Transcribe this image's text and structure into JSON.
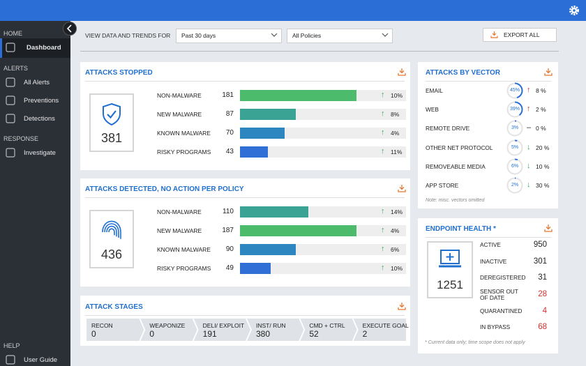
{
  "sidebar": {
    "sections": [
      {
        "title": "HOME",
        "items": [
          "Dashboard"
        ]
      },
      {
        "title": "ALERTS",
        "items": [
          "All Alerts",
          "Preventions",
          "Detections"
        ]
      },
      {
        "title": "RESPONSE",
        "items": [
          "Investigate"
        ]
      },
      {
        "title": "HELP",
        "items": [
          "User Guide"
        ]
      }
    ]
  },
  "filters": {
    "label": "VIEW DATA AND TRENDS FOR",
    "period": "Past 30 days",
    "policy": "All Policies",
    "export": "EXPORT ALL"
  },
  "attacks_stopped": {
    "title": "ATTACKS STOPPED",
    "total": 381,
    "rows": [
      {
        "label": "NON-MALWARE",
        "value": 181,
        "color": "#4cbb6c",
        "arrow": "↑",
        "arrow_color": "#3aa55a",
        "change": "10%"
      },
      {
        "label": "NEW MALWARE",
        "value": 87,
        "color": "#3aa394",
        "arrow": "↑",
        "arrow_color": "#3aa55a",
        "change": "8%"
      },
      {
        "label": "KNOWN MALWARE",
        "value": 70,
        "color": "#2e86c1",
        "arrow": "↑",
        "arrow_color": "#3aa55a",
        "change": "4%"
      },
      {
        "label": "RISKY PROGRAMS",
        "value": 43,
        "color": "#2f6fd6",
        "arrow": "↑",
        "arrow_color": "#3aa55a",
        "change": "11%"
      }
    ]
  },
  "attacks_detected": {
    "title": "ATTACKS DETECTED, NO ACTION PER POLICY",
    "total": 436,
    "rows": [
      {
        "label": "NON-MALWARE",
        "value": 110,
        "color": "#3aa394",
        "arrow": "↑",
        "arrow_color": "#3aa55a",
        "change": "14%"
      },
      {
        "label": "NEW MALWARE",
        "value": 187,
        "color": "#4cbb6c",
        "arrow": "↑",
        "arrow_color": "#3aa55a",
        "change": "4%"
      },
      {
        "label": "KNOWN MALWARE",
        "value": 90,
        "color": "#2e86c1",
        "arrow": "↑",
        "arrow_color": "#3aa55a",
        "change": "6%"
      },
      {
        "label": "RISKY PROGRAMS",
        "value": 49,
        "color": "#2f6fd6",
        "arrow": "↑",
        "arrow_color": "#3aa55a",
        "change": "10%"
      }
    ]
  },
  "attack_stages": {
    "title": "ATTACK STAGES",
    "stages": [
      {
        "label": "RECON",
        "value": 0
      },
      {
        "label": "WEAPONIZE",
        "value": 0
      },
      {
        "label": "DELI/ EXPLOIT",
        "value": 191
      },
      {
        "label": "INST/ RUN",
        "value": 380
      },
      {
        "label": "CMD + CTRL",
        "value": 52
      },
      {
        "label": "EXECUTE GOAL",
        "value": 2
      }
    ]
  },
  "attacks_by_vector": {
    "title": "ATTACKS BY VECTOR",
    "rows": [
      {
        "label": "EMAIL",
        "share": {
          "value": 45,
          "label": "45%"
        },
        "arrow": "↑",
        "arrow_color": "#d0312d",
        "change": "8 %"
      },
      {
        "label": "WEB",
        "share": {
          "value": 39,
          "label": "39%"
        },
        "arrow": "↑",
        "arrow_color": "#d0312d",
        "change": "2 %"
      },
      {
        "label": "REMOTE DRIVE",
        "share": {
          "value": 3,
          "label": "3%"
        },
        "arrow": "–",
        "arrow_color": "#222222",
        "change": "0 %"
      },
      {
        "label": "OTHER NET PROTOCOL",
        "share": {
          "value": 5,
          "label": "5%"
        },
        "arrow": "↓",
        "arrow_color": "#3aa55a",
        "change": "20 %"
      },
      {
        "label": "REMOVEABLE MEDIA",
        "share": {
          "value": 6,
          "label": "6%"
        },
        "arrow": "↓",
        "arrow_color": "#3aa55a",
        "change": "10 %"
      },
      {
        "label": "APP STORE",
        "share": {
          "value": 2,
          "label": "2%"
        },
        "arrow": "↓",
        "arrow_color": "#3aa55a",
        "change": "30 %"
      }
    ],
    "note": "Note: misc. vectors omitted"
  },
  "endpoint_health": {
    "title": "ENDPOINT HEALTH *",
    "total": 1251,
    "rows": [
      {
        "label": "ACTIVE",
        "value": 950
      },
      {
        "label": "INACTIVE",
        "value": 301
      },
      {
        "label": "DEREGISTERED",
        "value": 31
      },
      {
        "label": "SENSOR OUT OF DATE",
        "value": 28,
        "color": "#d0312d"
      },
      {
        "label": "QUARANTINED",
        "value": 4,
        "color": "#d0312d"
      },
      {
        "label": "IN BYPASS",
        "value": 68,
        "color": "#d0312d"
      }
    ],
    "note": "* Current data only; time scope does not apply"
  }
}
